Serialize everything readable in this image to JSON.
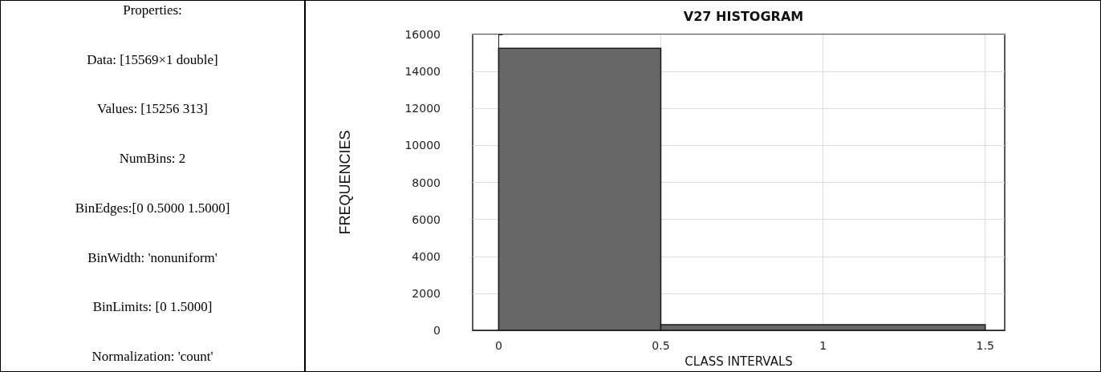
{
  "chart_data": [
    {
      "type": "other",
      "title": "Properties:",
      "annotations": [
        "Data: [15569×1 double]",
        "Values: [15256 313]",
        "NumBins: 2",
        "BinEdges:[0 0.5000 1.5000]",
        "BinWidth: 'nonuniform'",
        "BinLimits: [0 1.5000]",
        "Normalization: 'count'"
      ]
    },
    {
      "type": "histogram",
      "title": "V27 HISTOGRAM",
      "xlabel": "CLASS INTERVALS",
      "ylabel": "FREQUENCIES",
      "bins": [
        0,
        0.5,
        1.5
      ],
      "values": [
        15256,
        313
      ],
      "color": "#666666",
      "xlim": [
        -0.08,
        1.56
      ],
      "xticks": [
        0,
        0.5,
        1,
        1.5
      ],
      "ylim": [
        0,
        16000
      ],
      "yticks": [
        0,
        2000,
        4000,
        6000,
        8000,
        10000,
        12000,
        14000,
        16000
      ],
      "grid": true
    }
  ]
}
